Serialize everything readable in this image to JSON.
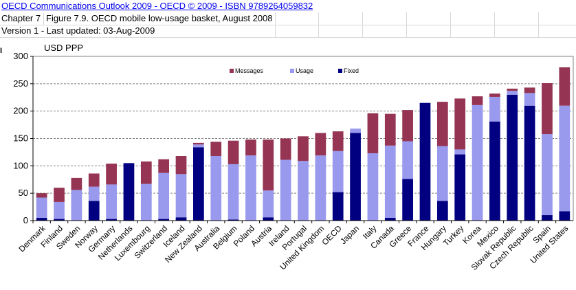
{
  "header": {
    "title_link": "OECD Communications Outlook 2009 - OECD © 2009 - ISBN 9789264059832",
    "chapter": "Chapter 7",
    "figure_title": "Figure 7.9. OECD mobile low-usage basket, August 2008",
    "version": "Version 1 - Last updated: 03-Aug-2009",
    "fragment": "I"
  },
  "colors": {
    "messages": "#953553",
    "usage": "#9999ee",
    "fixed": "#000080",
    "grid": "#808080"
  },
  "chart_data": {
    "type": "bar",
    "stacked": true,
    "title": "",
    "ylabel": "USD PPP",
    "xlabel": "",
    "ylim": [
      0,
      300
    ],
    "yticks": [
      0,
      50,
      100,
      150,
      200,
      250,
      300
    ],
    "grid": true,
    "legend_position": "top-center",
    "categories": [
      "Denmark",
      "Finland",
      "Sweden",
      "Norway",
      "Germany",
      "Netherlands",
      "Luxembourg",
      "Switzerland",
      "Iceland",
      "New Zealand",
      "Australia",
      "Belgium",
      "Poland",
      "Austria",
      "Ireland",
      "Portugal",
      "United Kingdom",
      "OECD",
      "Japan",
      "Italy",
      "Canada",
      "Greece",
      "France",
      "Hungary",
      "Turkey",
      "Korea",
      "Mexico",
      "Slovak Republic",
      "Czech Republic",
      "Spain",
      "United States"
    ],
    "series": [
      {
        "name": "Fixed",
        "values": [
          5,
          3,
          0,
          36,
          3,
          105,
          0,
          3,
          6,
          134,
          0,
          2,
          0,
          6,
          0,
          0,
          0,
          52,
          160,
          0,
          5,
          76,
          215,
          36,
          121,
          0,
          181,
          230,
          210,
          10,
          17
        ]
      },
      {
        "name": "Usage",
        "values": [
          37,
          31,
          56,
          26,
          63,
          0,
          67,
          84,
          79,
          5,
          118,
          101,
          119,
          49,
          111,
          109,
          119,
          75,
          8,
          123,
          132,
          69,
          0,
          100,
          9,
          211,
          45,
          7,
          23,
          148,
          193
        ]
      },
      {
        "name": "Messages",
        "values": [
          8,
          26,
          22,
          24,
          38,
          0,
          41,
          25,
          33,
          3,
          26,
          43,
          29,
          93,
          39,
          45,
          41,
          36,
          0,
          73,
          58,
          57,
          0,
          81,
          93,
          16,
          6,
          4,
          10,
          93,
          70
        ]
      }
    ]
  }
}
